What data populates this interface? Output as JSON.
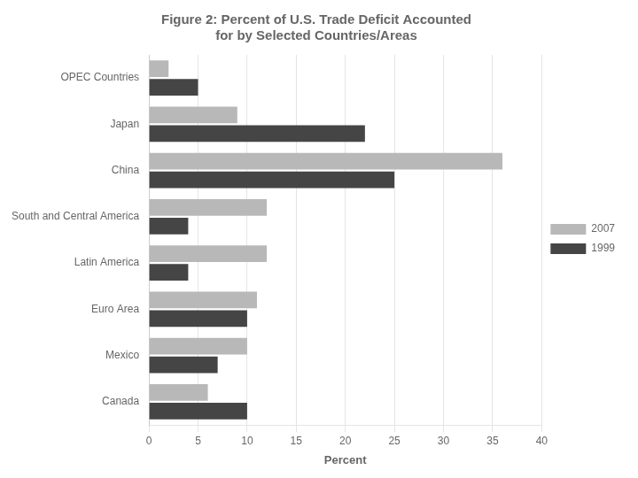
{
  "chart_data": {
    "type": "bar",
    "orientation": "horizontal",
    "title": "Figure 2: Percent of U.S. Trade Deficit Accounted\nfor by Selected Countries/Areas",
    "categories": [
      "OPEC Countries",
      "Japan",
      "China",
      "South and Central America",
      "Latin America",
      "Euro Area",
      "Mexico",
      "Canada"
    ],
    "series": [
      {
        "name": "2007",
        "color": "#b8b8b8",
        "values": [
          2,
          9,
          36,
          12,
          12,
          11,
          10,
          6
        ]
      },
      {
        "name": "1999",
        "color": "#454545",
        "values": [
          5,
          22,
          25,
          4,
          4,
          10,
          7,
          10
        ]
      }
    ],
    "xlabel": "Percent",
    "xlim": [
      0,
      40
    ],
    "xticks": [
      0,
      5,
      10,
      15,
      20,
      25,
      30,
      35,
      40
    ],
    "grid": true,
    "legend": "right"
  }
}
